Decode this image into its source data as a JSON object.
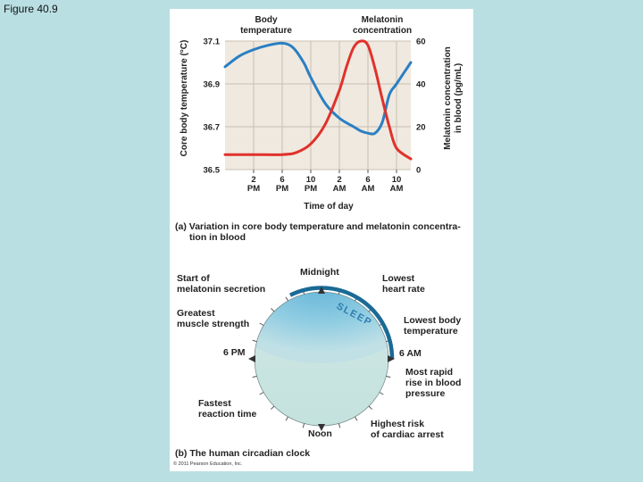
{
  "slide": {
    "title": "Figure 40.9"
  },
  "chart_data": {
    "type": "line",
    "caption_letter": "(a)",
    "caption_line1": "Variation in core body temperature and melatonin concentra-",
    "caption_line2": "tion in blood",
    "xlabel": "Time of day",
    "ylabel_left": "Core body temperature (°C)",
    "ylabel_right_line1": "Melatonin concentration",
    "ylabel_right_line2": "in blood (pg/mL)",
    "x_ticks": [
      {
        "top": "2",
        "bottom": "PM"
      },
      {
        "top": "6",
        "bottom": "PM"
      },
      {
        "top": "10",
        "bottom": "PM"
      },
      {
        "top": "2",
        "bottom": "AM"
      },
      {
        "top": "6",
        "bottom": "AM"
      },
      {
        "top": "10",
        "bottom": "AM"
      }
    ],
    "x_tick_hours": [
      14,
      18,
      22,
      26,
      30,
      34
    ],
    "xlim": [
      10,
      36
    ],
    "ylim_left": [
      36.5,
      37.1
    ],
    "ylim_right": [
      0,
      60
    ],
    "y_ticks_left": [
      "37.1",
      "36.9",
      "36.7",
      "36.5"
    ],
    "y_ticks_left_values": [
      37.1,
      36.9,
      36.7,
      36.5
    ],
    "y_ticks_right": [
      "60",
      "40",
      "20",
      "0"
    ],
    "y_ticks_right_values": [
      60,
      40,
      20,
      0
    ],
    "grid": true,
    "series": [
      {
        "name": "Body temperature",
        "axis": "left",
        "color": "#2a7fc4",
        "x": [
          10,
          12,
          14,
          16,
          18,
          19.5,
          21,
          22,
          24,
          26,
          28,
          29,
          30,
          31,
          32,
          33,
          34,
          36
        ],
        "y": [
          36.98,
          37.03,
          37.06,
          37.08,
          37.09,
          37.07,
          37.0,
          36.93,
          36.81,
          36.74,
          36.7,
          36.68,
          36.67,
          36.67,
          36.72,
          36.85,
          36.9,
          37.0
        ]
      },
      {
        "name": "Melatonin concentration",
        "axis": "right",
        "color": "#e0312b",
        "x": [
          10,
          14,
          18,
          20,
          22,
          24,
          26,
          27,
          28,
          29,
          30,
          31,
          32,
          33,
          34,
          36
        ],
        "y": [
          7,
          7,
          7,
          8,
          12,
          21,
          37,
          48,
          57,
          60,
          58,
          47,
          33,
          20,
          10,
          5
        ]
      }
    ]
  },
  "clock": {
    "caption_letter": "(b)",
    "caption_text": "The human circadian clock",
    "sleep_label": "SLEEP",
    "labels": {
      "midnight": "Midnight",
      "start_melatonin_1": "Start of",
      "start_melatonin_2": "melatonin secretion",
      "lowest_hr_1": "Lowest",
      "lowest_hr_2": "heart rate",
      "greatest_muscle_1": "Greatest",
      "greatest_muscle_2": "muscle strength",
      "lowest_temp_1": "Lowest body",
      "lowest_temp_2": "temperature",
      "six_pm": "6 PM",
      "six_am": "6 AM",
      "rapid_rise_1": "Most rapid",
      "rapid_rise_2": "rise in blood",
      "rapid_rise_3": "pressure",
      "fastest_1": "Fastest",
      "fastest_2": "reaction time",
      "cardiac_1": "Highest risk",
      "cardiac_2": "of cardiac arrest",
      "noon": "Noon"
    }
  },
  "copyright": "© 2011 Pearson Education, Inc."
}
